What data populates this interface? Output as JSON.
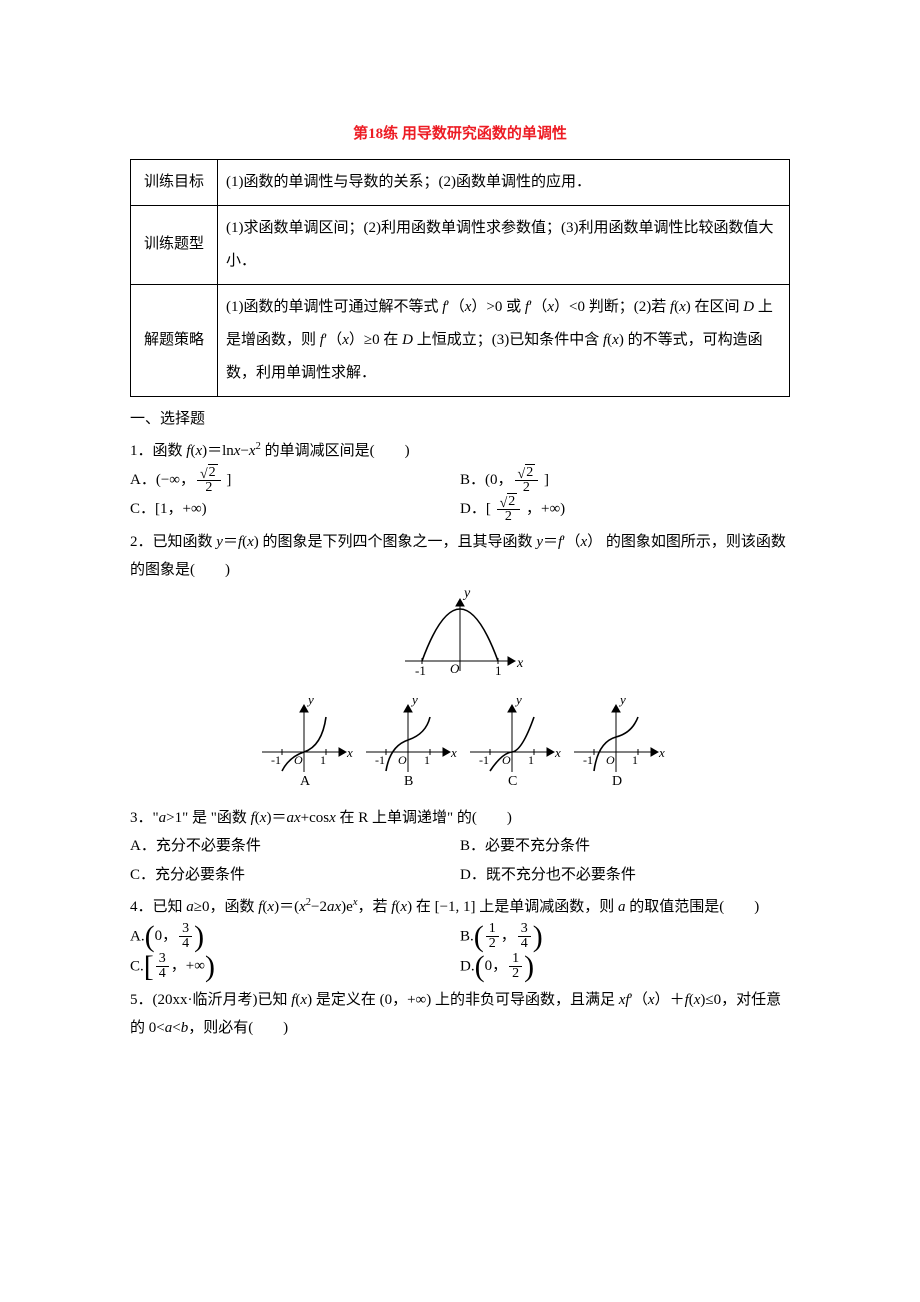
{
  "title_prefix": "第",
  "title_num": "18",
  "title_mid": "练 ",
  "title_rest": "用导数研究函数的单调性",
  "title_color": "#ed1c24",
  "table": {
    "rows": [
      {
        "label": "训练目标",
        "content_parts": [
          "(1)函数的单调性与导数的关系；(2)函数单调性的应用．"
        ]
      },
      {
        "label": "训练题型",
        "content_parts": [
          "(1)求函数单调区间；(2)利用函数单调性求参数值；(3)利用函数单调性比较函数值大小．"
        ]
      },
      {
        "label": "解题策略",
        "content_parts": [
          "(1)函数的单调性可通过解不等式 ",
          {
            "i": "f"
          },
          "′（",
          {
            "i": "x"
          },
          "）>0 或 ",
          {
            "i": "f"
          },
          "′（",
          {
            "i": "x"
          },
          "）<0 判断；(2)若 ",
          {
            "i": "f"
          },
          "(",
          {
            "i": "x"
          },
          ") 在区间 ",
          {
            "i": "D"
          },
          " 上是增函数，则 ",
          {
            "i": "f"
          },
          "′（",
          {
            "i": "x"
          },
          "）≥0 在 ",
          {
            "i": "D"
          },
          " 上恒成立；(3)已知条件中含 ",
          {
            "i": "f"
          },
          "(",
          {
            "i": "x"
          },
          ") 的不等式，可构造函数，利用单调性求解．"
        ]
      }
    ]
  },
  "section1": "一、选择题",
  "q1": {
    "stem_pre": "1．函数 ",
    "stem_mid": "＝ln",
    "stem_post": " 的单调减区间是(　　)",
    "optA_pre": "A．(−∞，",
    "optA_post": " ]",
    "optB_pre": "B．(0，",
    "optB_post": " ]",
    "optC": "C．[1，+∞)",
    "optD_pre": "D．[ ",
    "optD_post": " ，+∞)"
  },
  "q2": {
    "stem": "2．已知函数 ",
    "stem2": " 的图象是下列四个图象之一，且其导函数 ",
    "stem3": " 的图象如图所示，则该函数的图象是(　　)",
    "labels": [
      "A",
      "B",
      "C",
      "D"
    ]
  },
  "q3": {
    "stem_pre": "3．\"",
    "stem_a": ">1\" 是 \"函数 ",
    "stem_eq": "＝",
    "stem_mid": "+cos",
    "stem_post": " 在 R 上单调递增\" 的(　　)",
    "optA": "A．充分不必要条件",
    "optB": "B．必要不充分条件",
    "optC": "C．充分必要条件",
    "optD": "D．既不充分也不必要条件"
  },
  "q4": {
    "stem_pre": "4．已知 ",
    "stem_a": "≥0，函数 ",
    "stem_eq": "＝(",
    "stem_mid": "−2",
    "stem_mid2": ")e",
    "stem_post": "，若 ",
    "stem_post2": " 在 [−1, 1] 上是单调减函数，则 ",
    "stem_post3": " 的取值范围是(　　)",
    "optA_lo": "0",
    "optA_hi_n": "3",
    "optA_hi_d": "4",
    "optB_lo_n": "1",
    "optB_lo_d": "2",
    "optB_hi_n": "3",
    "optB_hi_d": "4",
    "optC_lo_n": "3",
    "optC_lo_d": "4",
    "optC_hi": "+∞",
    "optD_lo": "0",
    "optD_hi_n": "1",
    "optD_hi_d": "2"
  },
  "q5": {
    "stem_pre": "5．(20xx·临沂月考)已知 ",
    "stem_mid": " 是定义在 (0，+∞) 上的非负可导函数，且满足 ",
    "stem_mid2": "＋",
    "stem_post": "≤0，对任意的 0<",
    "stem_post2": "<",
    "stem_post3": "，则必有(　　)"
  },
  "graph": {
    "axis_color": "#000000",
    "curve_color": "#000000",
    "label_font": "italic 14px Times"
  }
}
